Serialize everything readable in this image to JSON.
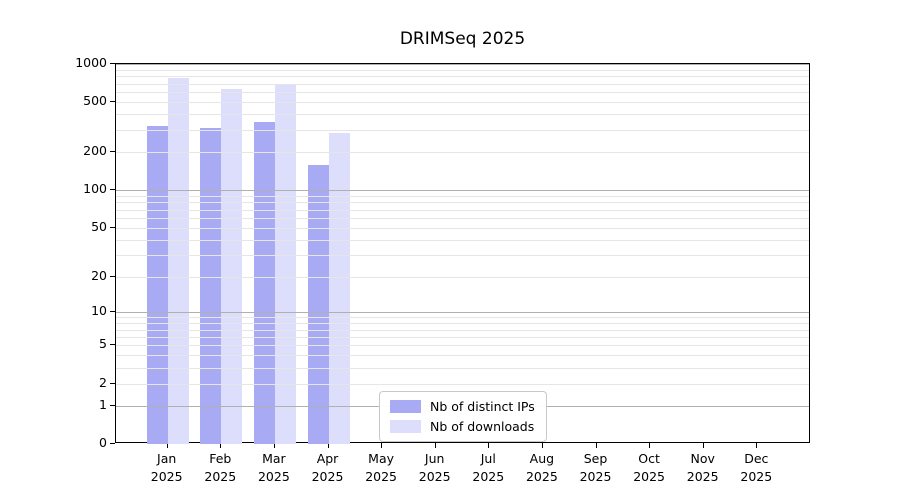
{
  "chart_data": {
    "type": "bar",
    "title": "DRIMSeq 2025",
    "x_categories": [
      {
        "month": "Jan",
        "year": "2025"
      },
      {
        "month": "Feb",
        "year": "2025"
      },
      {
        "month": "Mar",
        "year": "2025"
      },
      {
        "month": "Apr",
        "year": "2025"
      },
      {
        "month": "May",
        "year": "2025"
      },
      {
        "month": "Jun",
        "year": "2025"
      },
      {
        "month": "Jul",
        "year": "2025"
      },
      {
        "month": "Aug",
        "year": "2025"
      },
      {
        "month": "Sep",
        "year": "2025"
      },
      {
        "month": "Oct",
        "year": "2025"
      },
      {
        "month": "Nov",
        "year": "2025"
      },
      {
        "month": "Dec",
        "year": "2025"
      }
    ],
    "series": [
      {
        "name": "Nb of distinct IPs",
        "color": "#a8abf4",
        "values": [
          325,
          310,
          345,
          158,
          null,
          null,
          null,
          null,
          null,
          null,
          null,
          null
        ]
      },
      {
        "name": "Nb of downloads",
        "color": "#dcdefb",
        "values": [
          770,
          635,
          690,
          285,
          null,
          null,
          null,
          null,
          null,
          null,
          null,
          null
        ]
      }
    ],
    "y_axis": {
      "scale": "log10(value+1)",
      "ylim": [
        0,
        1000
      ],
      "ticks": [
        1000,
        500,
        200,
        100,
        50,
        20,
        10,
        5,
        2,
        1,
        0
      ],
      "minor_gridlines": [
        900,
        800,
        700,
        600,
        400,
        300,
        90,
        80,
        70,
        60,
        40,
        30,
        9,
        8,
        7,
        6,
        4,
        3
      ]
    },
    "legend": {
      "position": "bottom-center"
    },
    "grid": "horizontal",
    "colors": {
      "power10_grid": "#b0b0b0",
      "minor_grid": "#e6e6e6",
      "axis": "#000000",
      "text": "#000000"
    }
  }
}
